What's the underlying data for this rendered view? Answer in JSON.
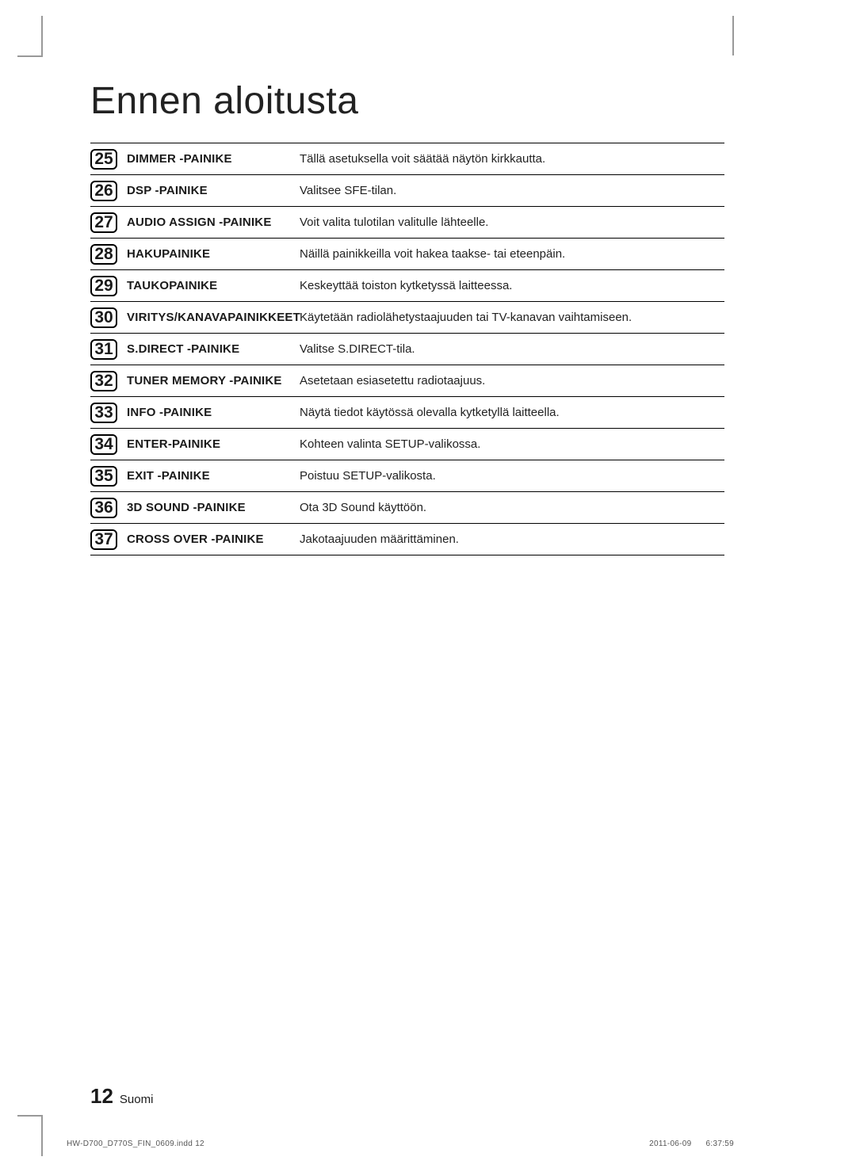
{
  "title": "Ennen aloitusta",
  "rows": [
    {
      "num": "25",
      "label": "DIMMER -PAINIKE",
      "desc": "Tällä asetuksella voit säätää näytön kirkkautta."
    },
    {
      "num": "26",
      "label": "DSP -PAINIKE",
      "desc": "Valitsee SFE-tilan."
    },
    {
      "num": "27",
      "label": "AUDIO ASSIGN -PAINIKE",
      "desc": "Voit valita tulotilan valitulle lähteelle."
    },
    {
      "num": "28",
      "label": "HAKUPAINIKE",
      "desc": "Näillä painikkeilla voit hakea taakse- tai eteenpäin."
    },
    {
      "num": "29",
      "label": "TAUKOPAINIKE",
      "desc": "Keskeyttää toiston kytketyssä laitteessa."
    },
    {
      "num": "30",
      "label": "VIRITYS/KANAVAPAINIKKEET",
      "desc": "Käytetään radiolähetystaajuuden tai TV-kanavan vaihtamiseen."
    },
    {
      "num": "31",
      "label": "S.DIRECT -PAINIKE",
      "desc": "Valitse S.DIRECT-tila."
    },
    {
      "num": "32",
      "label": "TUNER MEMORY -PAINIKE",
      "desc": "Asetetaan esiasetettu radiotaajuus."
    },
    {
      "num": "33",
      "label": "INFO -PAINIKE",
      "desc": "Näytä tiedot käytössä olevalla kytketyllä laitteella."
    },
    {
      "num": "34",
      "label": "ENTER-PAINIKE",
      "desc": "Kohteen valinta SETUP-valikossa."
    },
    {
      "num": "35",
      "label": "EXIT -PAINIKE",
      "desc": "Poistuu SETUP-valikosta."
    },
    {
      "num": "36",
      "label": "3D SOUND -PAINIKE",
      "desc": "Ota 3D Sound käyttöön."
    },
    {
      "num": "37",
      "label": "CROSS OVER -PAINIKE",
      "desc": "Jakotaajuuden määrittäminen."
    }
  ],
  "page_number": "12",
  "page_language": "Suomi",
  "footer_left": "HW-D700_D770S_FIN_0609.indd   12",
  "footer_date": "2011-06-09",
  "footer_time": "6:37:59"
}
